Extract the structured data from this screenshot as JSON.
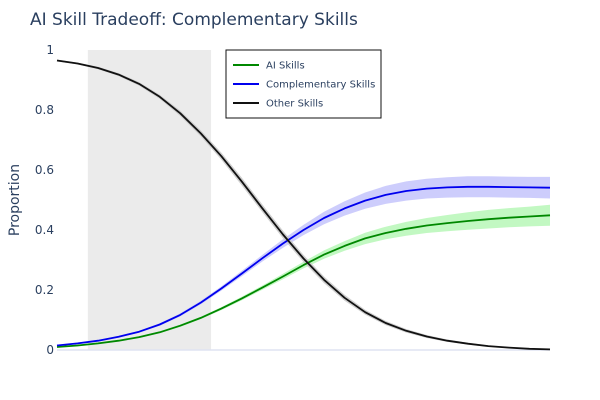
{
  "chart_data": {
    "type": "line",
    "title": "AI Skill Tradeoff: Complementary Skills",
    "xlabel": "",
    "ylabel": "Proportion",
    "ylim": [
      0,
      1
    ],
    "xlim": [
      0,
      20
    ],
    "yticks": [
      {
        "value": 0,
        "label": "0"
      },
      {
        "value": 0.2,
        "label": "0.2"
      },
      {
        "value": 0.4,
        "label": "0.4"
      },
      {
        "value": 0.6,
        "label": "0.6"
      },
      {
        "value": 0.8,
        "label": "0.8"
      },
      {
        "value": 1,
        "label": "1"
      }
    ],
    "x_tick_labels_shown": false,
    "shaded_region": {
      "x0": 1.25,
      "x1": 6.25,
      "color": "#ebebeb"
    },
    "grid": false,
    "legend_position": "top-center",
    "x": [
      0,
      0.833,
      1.667,
      2.5,
      3.333,
      4.167,
      5,
      5.833,
      6.667,
      7.5,
      8.333,
      9.167,
      10,
      10.833,
      11.667,
      12.5,
      13.333,
      14.167,
      15,
      15.833,
      16.667,
      17.5,
      18.333,
      19.167,
      20
    ],
    "series": [
      {
        "name": "AI Skills",
        "color": "#008800",
        "band_color": "#b7f7b7",
        "values": [
          0.01,
          0.015,
          0.022,
          0.031,
          0.043,
          0.059,
          0.081,
          0.107,
          0.138,
          0.172,
          0.208,
          0.245,
          0.283,
          0.318,
          0.347,
          0.372,
          0.39,
          0.404,
          0.415,
          0.423,
          0.43,
          0.436,
          0.441,
          0.445,
          0.449
        ],
        "lower": [
          0.008,
          0.013,
          0.02,
          0.029,
          0.04,
          0.056,
          0.077,
          0.103,
          0.133,
          0.166,
          0.201,
          0.236,
          0.272,
          0.304,
          0.331,
          0.353,
          0.369,
          0.381,
          0.39,
          0.396,
          0.401,
          0.405,
          0.409,
          0.412,
          0.414
        ],
        "upper": [
          0.012,
          0.017,
          0.024,
          0.033,
          0.046,
          0.062,
          0.085,
          0.111,
          0.143,
          0.178,
          0.215,
          0.254,
          0.294,
          0.332,
          0.363,
          0.391,
          0.411,
          0.427,
          0.44,
          0.45,
          0.459,
          0.467,
          0.473,
          0.478,
          0.484
        ]
      },
      {
        "name": "Complementary Skills",
        "color": "#0000ee",
        "band_color": "#c4c4fb",
        "values": [
          0.015,
          0.022,
          0.031,
          0.044,
          0.061,
          0.085,
          0.117,
          0.158,
          0.205,
          0.255,
          0.306,
          0.355,
          0.4,
          0.44,
          0.472,
          0.498,
          0.517,
          0.53,
          0.538,
          0.542,
          0.544,
          0.544,
          0.543,
          0.542,
          0.541
        ],
        "lower": [
          0.013,
          0.02,
          0.029,
          0.041,
          0.058,
          0.081,
          0.112,
          0.152,
          0.198,
          0.246,
          0.295,
          0.341,
          0.383,
          0.419,
          0.448,
          0.471,
          0.487,
          0.498,
          0.505,
          0.508,
          0.509,
          0.509,
          0.508,
          0.507,
          0.505
        ],
        "upper": [
          0.017,
          0.024,
          0.033,
          0.047,
          0.064,
          0.089,
          0.122,
          0.164,
          0.212,
          0.264,
          0.317,
          0.369,
          0.417,
          0.461,
          0.496,
          0.525,
          0.547,
          0.562,
          0.571,
          0.576,
          0.579,
          0.579,
          0.578,
          0.577,
          0.577
        ]
      },
      {
        "name": "Other Skills",
        "color": "#111111",
        "band_color": "#c8c8c8",
        "values": [
          0.965,
          0.955,
          0.94,
          0.918,
          0.887,
          0.844,
          0.789,
          0.722,
          0.646,
          0.561,
          0.472,
          0.385,
          0.305,
          0.234,
          0.174,
          0.126,
          0.09,
          0.064,
          0.045,
          0.031,
          0.021,
          0.013,
          0.008,
          0.004,
          0.002
        ],
        "lower": [
          0.962,
          0.952,
          0.936,
          0.913,
          0.881,
          0.837,
          0.78,
          0.712,
          0.634,
          0.548,
          0.459,
          0.372,
          0.293,
          0.223,
          0.164,
          0.118,
          0.083,
          0.058,
          0.04,
          0.027,
          0.018,
          0.011,
          0.006,
          0.003,
          0.001
        ],
        "upper": [
          0.968,
          0.958,
          0.944,
          0.923,
          0.893,
          0.851,
          0.798,
          0.732,
          0.658,
          0.574,
          0.485,
          0.398,
          0.317,
          0.245,
          0.184,
          0.134,
          0.097,
          0.07,
          0.05,
          0.035,
          0.024,
          0.015,
          0.01,
          0.005,
          0.003
        ]
      }
    ]
  }
}
